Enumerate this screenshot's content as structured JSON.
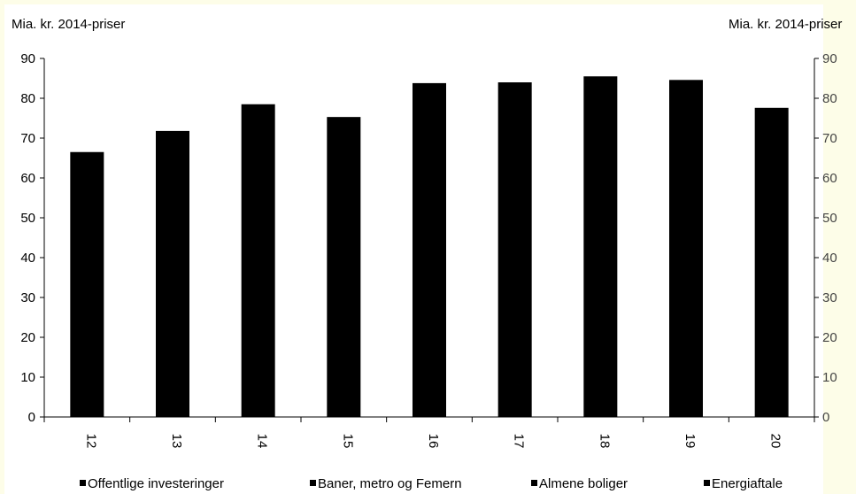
{
  "chart_data": {
    "type": "bar",
    "left_unit_label": "Mia. kr. 2014-priser",
    "right_unit_label": "Mia. kr. 2014-priser",
    "categories": [
      "12",
      "13",
      "14",
      "15",
      "16",
      "17",
      "18",
      "19",
      "20"
    ],
    "series": [
      {
        "name": "Offentlige investeringer",
        "values": [
          66.5,
          71.8,
          78.5,
          75.3,
          83.8,
          84.0,
          85.5,
          84.6,
          77.6
        ]
      }
    ],
    "legend": [
      "Offentlige investeringer",
      "Baner, metro og Femern",
      "Almene boliger",
      "Energiaftale"
    ],
    "ylim": [
      0,
      90
    ],
    "yticks": [
      0,
      10,
      20,
      30,
      40,
      50,
      60,
      70,
      80,
      90
    ],
    "legend_position": "bottom",
    "grid": false,
    "colors": {
      "bar": "#000000",
      "background": "#fdfde8",
      "plot": "#ffffff"
    }
  }
}
